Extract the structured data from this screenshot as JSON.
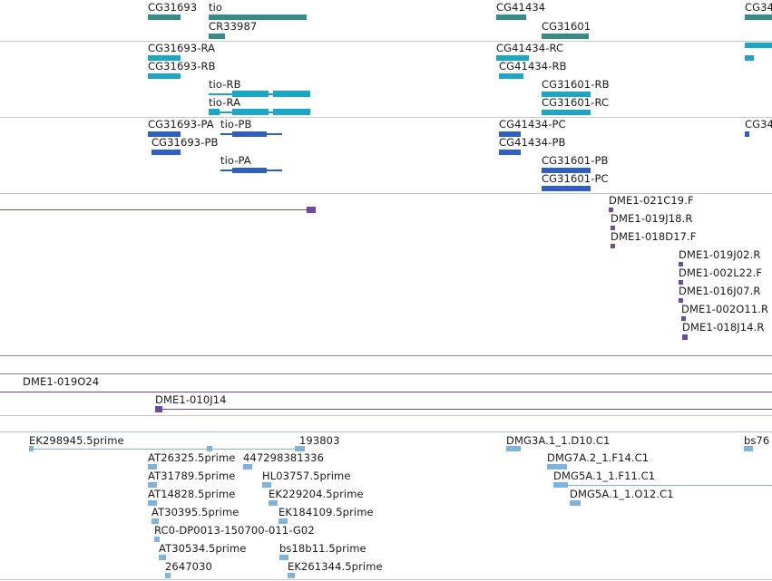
{
  "colors": {
    "gene": "#3a8a8a",
    "transcript_cyan": "#1aa6c4",
    "transcript_blue": "#2f5fc4",
    "clone": "#6a4aa6",
    "est": "#7fb3dc",
    "separator": "#c8c8c8"
  },
  "tracks": {
    "genes": [
      {
        "label": "CG31693"
      },
      {
        "label": "tio"
      },
      {
        "label": "CR33987"
      },
      {
        "label": "CG41434"
      },
      {
        "label": "CG31601"
      },
      {
        "label": "CG34"
      }
    ],
    "transcripts_cyan": [
      {
        "label": "CG31693-RA"
      },
      {
        "label": "CG31693-RB"
      },
      {
        "label": "tio-RB"
      },
      {
        "label": "tio-RA"
      },
      {
        "label": "CG41434-RC"
      },
      {
        "label": "CG41434-RB"
      },
      {
        "label": "CG31601-RB"
      },
      {
        "label": "CG31601-RC"
      }
    ],
    "transcripts_blue": [
      {
        "label": "CG31693-PA"
      },
      {
        "label": "tio-PB"
      },
      {
        "label": "CG31693-PB"
      },
      {
        "label": "tio-PA"
      },
      {
        "label": "CG41434-PC"
      },
      {
        "label": "CG41434-PB"
      },
      {
        "label": "CG31601-PB"
      },
      {
        "label": "CG31601-PC"
      },
      {
        "label": "CG34"
      }
    ],
    "clones": [
      {
        "label": "DME1-021C19.F"
      },
      {
        "label": "DME1-019J18.R"
      },
      {
        "label": "DME1-018D17.F"
      },
      {
        "label": "DME1-019J02.R"
      },
      {
        "label": "DME1-002L22.F"
      },
      {
        "label": "DME1-016J07.R"
      },
      {
        "label": "DME1-002O11.R"
      },
      {
        "label": "DME1-018J14.R"
      }
    ],
    "long_clones": [
      {
        "label": "DME1-019O24"
      },
      {
        "label": "DME1-010J14"
      }
    ],
    "ests": [
      {
        "label": "EK298945.5prime"
      },
      {
        "label": "193803"
      },
      {
        "label": "DMG3A.1_1.D10.C1"
      },
      {
        "label": "bs76"
      },
      {
        "label": "AT26325.5prime"
      },
      {
        "label": "447298381336"
      },
      {
        "label": "DMG7A.2_1.F14.C1"
      },
      {
        "label": "AT31789.5prime"
      },
      {
        "label": "HL03757.5prime"
      },
      {
        "label": "DMG5A.1_1.F11.C1"
      },
      {
        "label": "AT14828.5prime"
      },
      {
        "label": "EK229204.5prime"
      },
      {
        "label": "DMG5A.1_1.O12.C1"
      },
      {
        "label": "AT30395.5prime"
      },
      {
        "label": "EK184109.5prime"
      },
      {
        "label": "RC0-DP0013-150700-011-G02"
      },
      {
        "label": "AT30534.5prime"
      },
      {
        "label": "bs18b11.5prime"
      },
      {
        "label": "2647030"
      },
      {
        "label": "EK261344.5prime"
      }
    ]
  }
}
